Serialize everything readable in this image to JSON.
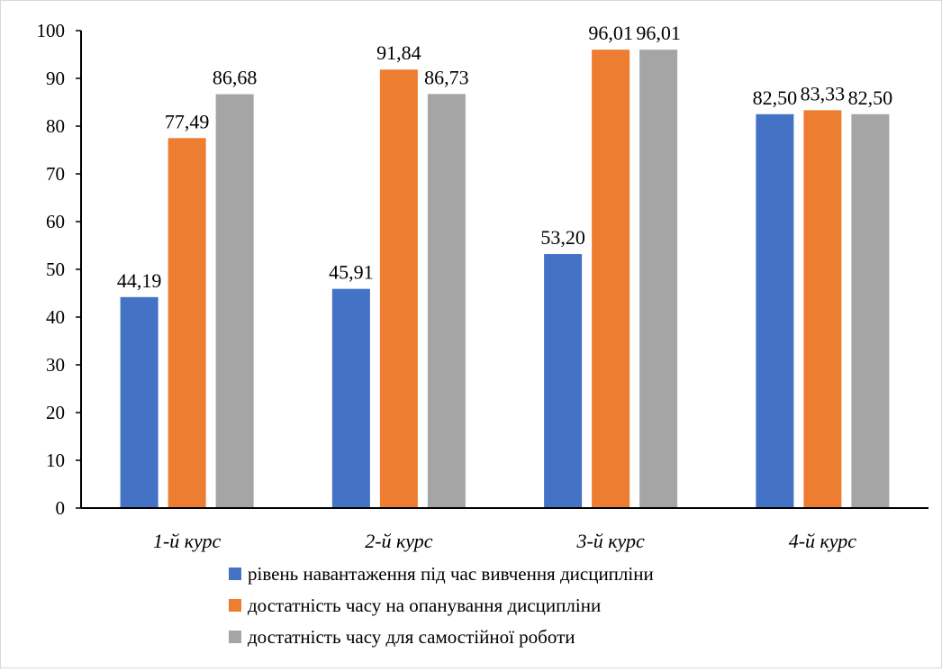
{
  "chart_data": {
    "type": "bar",
    "title": "",
    "xlabel": "",
    "ylabel": "",
    "ylim": [
      0,
      100
    ],
    "yticks": [
      0,
      10,
      20,
      30,
      40,
      50,
      60,
      70,
      80,
      90,
      100
    ],
    "grid": false,
    "legend_position": "bottom",
    "categories": [
      "1-й курс",
      "2-й курс",
      "3-й курс",
      "4-й курс"
    ],
    "series": [
      {
        "name": "рівень навантаження під час вивчення дисципліни",
        "color": "#4472c4",
        "values": [
          44.19,
          45.91,
          53.2,
          82.5
        ],
        "labels": [
          "44,19",
          "45,91",
          "53,20",
          "82,50"
        ]
      },
      {
        "name": "достатність часу на опанування дисципліни",
        "color": "#ed7d31",
        "values": [
          77.49,
          91.84,
          96.01,
          83.33
        ],
        "labels": [
          "77,49",
          "91,84",
          "96,01",
          "83,33"
        ]
      },
      {
        "name": "достатність часу для самостійної роботи",
        "color": "#a5a5a5",
        "values": [
          86.68,
          86.73,
          96.01,
          82.5
        ],
        "labels": [
          "86,68",
          "86,73",
          "96,01",
          "82,50"
        ]
      }
    ]
  }
}
